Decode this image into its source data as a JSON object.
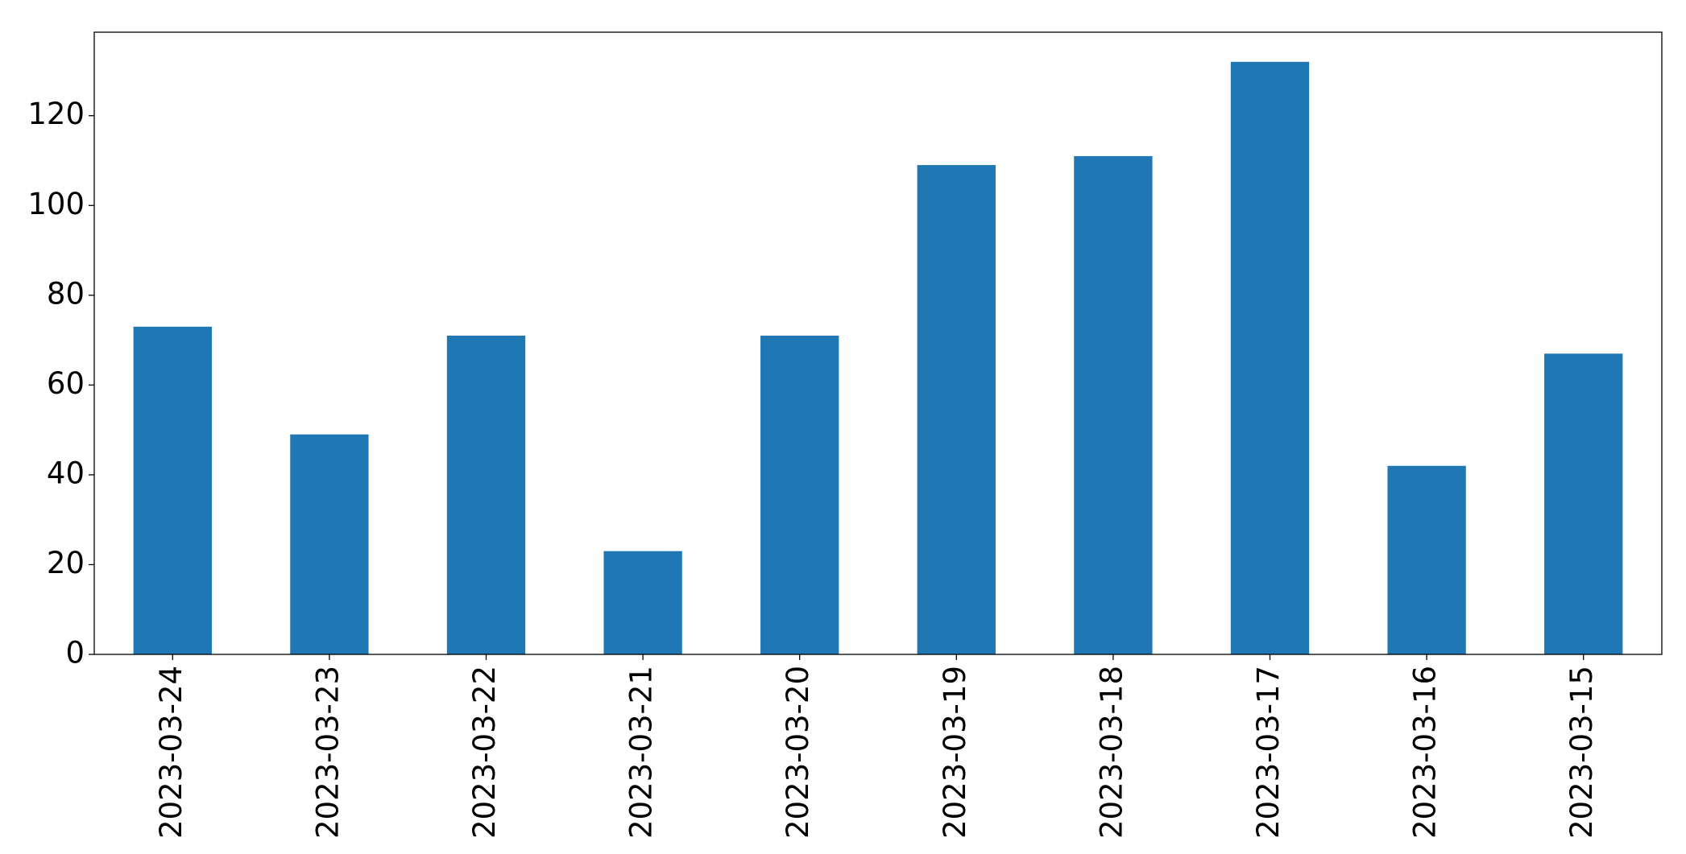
{
  "chart_data": {
    "type": "bar",
    "categories": [
      "2023-03-24",
      "2023-03-23",
      "2023-03-22",
      "2023-03-21",
      "2023-03-20",
      "2023-03-19",
      "2023-03-18",
      "2023-03-17",
      "2023-03-16",
      "2023-03-15"
    ],
    "values": [
      73,
      49,
      71,
      23,
      71,
      109,
      111,
      132,
      42,
      67
    ],
    "color": "#1f77b4",
    "ylim": [
      0,
      138.6
    ],
    "yticks": [
      0,
      20,
      40,
      60,
      80,
      100,
      120
    ],
    "grid": false
  }
}
